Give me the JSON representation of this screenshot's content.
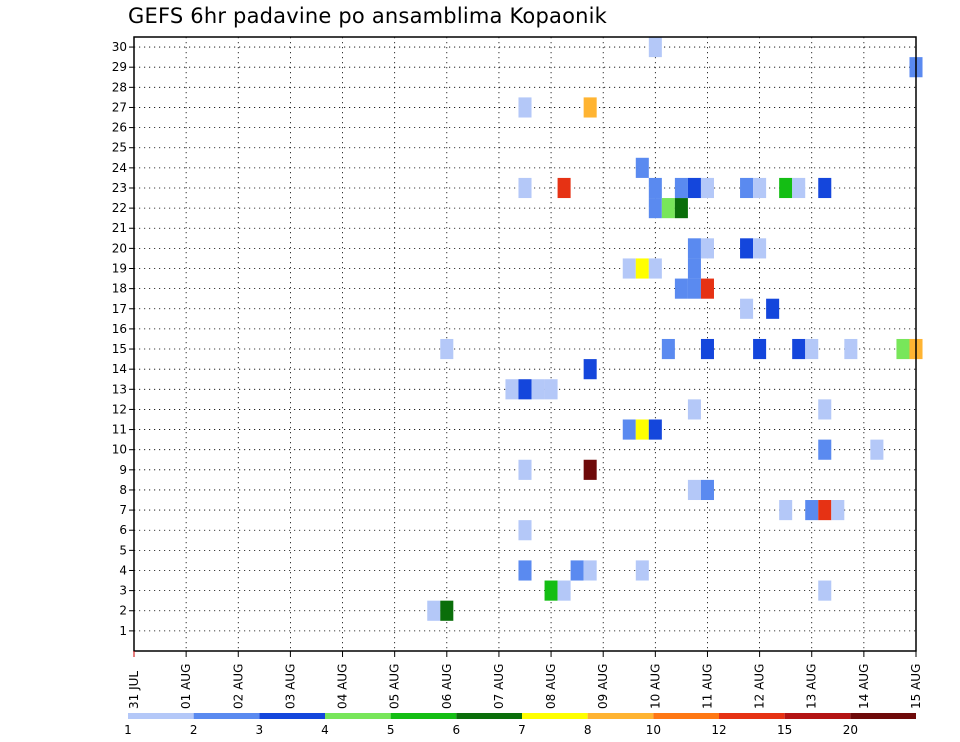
{
  "chart_data": {
    "type": "heatmap",
    "title": "GEFS 6hr padavine po ansamblima Kopaonik",
    "xlabel": "",
    "ylabel": "",
    "x_range": [
      "31 JUL",
      "15 AUG"
    ],
    "x_tick_labels": [
      "31 JUL",
      "01 AUG",
      "02 AUG",
      "03 AUG",
      "04 AUG",
      "05 AUG",
      "06 AUG",
      "07 AUG",
      "08 AUG",
      "09 AUG",
      "10 AUG",
      "11 AUG",
      "12 AUG",
      "13 AUG",
      "14 AUG",
      "15 AUG"
    ],
    "y_tick_labels": [
      "1",
      "2",
      "3",
      "4",
      "5",
      "6",
      "7",
      "8",
      "9",
      "10",
      "11",
      "12",
      "13",
      "14",
      "15",
      "16",
      "17",
      "18",
      "19",
      "20",
      "21",
      "22",
      "23",
      "24",
      "25",
      "26",
      "27",
      "28",
      "29",
      "30"
    ],
    "ylim": [
      0,
      30.5
    ],
    "grid": true,
    "legend": {
      "placement": "bottom",
      "colors": [
        "#b4c8f8",
        "#5a8af0",
        "#1446dc",
        "#78e65a",
        "#14be14",
        "#0a6e0a",
        "#ffff00",
        "#ffb432",
        "#ff7814",
        "#e63214",
        "#b41414",
        "#6e0a0a"
      ],
      "labels": [
        "1",
        "2",
        "3",
        "4",
        "5",
        "6",
        "7",
        "8",
        "10",
        "12",
        "15",
        "20"
      ]
    },
    "cells_note_format": "[day_offset_from_31_JUL, member, color_index]",
    "cells": [
      [
        5.75,
        2,
        0
      ],
      [
        6.0,
        2,
        5
      ],
      [
        8.0,
        3,
        4
      ],
      [
        8.25,
        3,
        0
      ],
      [
        13.25,
        3,
        0
      ],
      [
        7.5,
        4,
        1
      ],
      [
        8.5,
        4,
        1
      ],
      [
        8.75,
        4,
        0
      ],
      [
        9.75,
        4,
        0
      ],
      [
        7.5,
        6,
        0
      ],
      [
        12.5,
        7,
        0
      ],
      [
        13.0,
        7,
        1
      ],
      [
        13.25,
        7,
        9
      ],
      [
        13.5,
        7,
        0
      ],
      [
        10.75,
        8,
        0
      ],
      [
        11.0,
        8,
        1
      ],
      [
        7.5,
        9,
        0
      ],
      [
        8.75,
        9,
        11
      ],
      [
        14.25,
        10,
        0
      ],
      [
        13.25,
        10,
        1
      ],
      [
        9.5,
        11,
        1
      ],
      [
        9.75,
        11,
        6
      ],
      [
        10.0,
        11,
        2
      ],
      [
        10.75,
        12,
        0
      ],
      [
        13.25,
        12,
        0
      ],
      [
        7.25,
        13,
        0
      ],
      [
        7.5,
        13,
        2
      ],
      [
        7.75,
        13,
        0
      ],
      [
        8.0,
        13,
        0
      ],
      [
        8.75,
        14,
        2
      ],
      [
        6.0,
        15,
        0
      ],
      [
        10.25,
        15,
        1
      ],
      [
        11.0,
        15,
        2
      ],
      [
        12.0,
        15,
        2
      ],
      [
        12.75,
        15,
        2
      ],
      [
        13.0,
        15,
        0
      ],
      [
        13.75,
        15,
        0
      ],
      [
        14.75,
        15,
        3
      ],
      [
        15.0,
        15,
        7
      ],
      [
        12.25,
        17,
        2
      ],
      [
        11.75,
        17,
        0
      ],
      [
        10.5,
        18,
        1
      ],
      [
        10.75,
        18,
        1
      ],
      [
        11.0,
        18,
        9
      ],
      [
        9.5,
        19,
        0
      ],
      [
        9.75,
        19,
        6
      ],
      [
        10.0,
        19,
        0
      ],
      [
        10.75,
        19,
        1
      ],
      [
        10.75,
        20,
        1
      ],
      [
        11.0,
        20,
        0
      ],
      [
        11.75,
        20,
        2
      ],
      [
        12.0,
        20,
        0
      ],
      [
        10.0,
        22,
        1
      ],
      [
        10.25,
        22,
        3
      ],
      [
        10.5,
        22,
        5
      ],
      [
        7.5,
        23,
        0
      ],
      [
        8.25,
        23,
        9
      ],
      [
        10.0,
        23,
        1
      ],
      [
        10.5,
        23,
        1
      ],
      [
        10.75,
        23,
        2
      ],
      [
        11.0,
        23,
        0
      ],
      [
        11.75,
        23,
        1
      ],
      [
        12.0,
        23,
        0
      ],
      [
        12.5,
        23,
        4
      ],
      [
        12.75,
        23,
        0
      ],
      [
        13.25,
        23,
        2
      ],
      [
        9.75,
        24,
        1
      ],
      [
        7.5,
        27,
        0
      ],
      [
        8.75,
        27,
        7
      ],
      [
        15.0,
        29,
        1
      ],
      [
        10.0,
        30,
        0
      ]
    ]
  }
}
